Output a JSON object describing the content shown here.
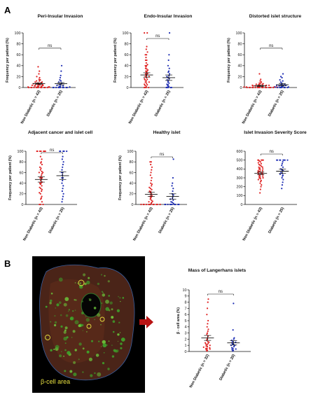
{
  "panel_letters": [
    "A",
    "B"
  ],
  "micrograph_label": "β-cell area",
  "colors": {
    "non_diabetic": "#e02424",
    "diabetic": "#1f2fb4",
    "arrow": "#b81414",
    "tissue_bg": "#000000"
  },
  "chart_data": [
    {
      "type": "scatter",
      "title": "Peri-Insular Invasion",
      "ylabel": "Frequency per patient (%)",
      "ylim": [
        0,
        100
      ],
      "yticks": [
        0,
        20,
        40,
        60,
        80,
        100
      ],
      "categories": [
        "Non Diabetic (n = 43)",
        "Diabetic (n = 25)"
      ],
      "annotation": "ns",
      "series": [
        {
          "values": [
            0,
            0,
            0,
            0,
            0,
            0,
            0,
            0,
            0,
            0,
            0,
            0,
            1,
            1,
            1,
            2,
            2,
            2,
            3,
            3,
            3,
            4,
            4,
            5,
            5,
            5,
            6,
            6,
            7,
            8,
            8,
            9,
            10,
            10,
            12,
            12,
            14,
            15,
            18,
            20,
            25,
            30,
            38
          ],
          "mean": 7,
          "sem": 1.5
        },
        {
          "values": [
            0,
            0,
            0,
            0,
            0,
            0,
            0,
            0,
            0,
            0,
            1,
            2,
            2,
            3,
            4,
            5,
            6,
            8,
            10,
            12,
            14,
            18,
            22,
            30,
            40
          ],
          "mean": 7,
          "sem": 2
        }
      ]
    },
    {
      "type": "scatter",
      "title": "Endo-Insular Invasion",
      "ylabel": "Frequency per patient (%)",
      "ylim": [
        0,
        100
      ],
      "yticks": [
        0,
        20,
        40,
        60,
        80,
        100
      ],
      "categories": [
        "Non Diabetic (n = 43)",
        "Diabetic (n = 25)"
      ],
      "annotation": "ns",
      "series": [
        {
          "values": [
            0,
            0,
            0,
            0,
            2,
            4,
            5,
            6,
            8,
            10,
            10,
            12,
            14,
            15,
            16,
            18,
            20,
            20,
            22,
            24,
            25,
            26,
            28,
            30,
            30,
            32,
            34,
            35,
            38,
            40,
            40,
            42,
            45,
            50,
            50,
            55,
            60,
            60,
            65,
            70,
            75,
            100,
            100
          ],
          "mean": 23,
          "sem": 4
        },
        {
          "values": [
            0,
            0,
            0,
            0,
            0,
            2,
            3,
            5,
            6,
            8,
            10,
            12,
            14,
            16,
            18,
            20,
            22,
            25,
            28,
            30,
            35,
            40,
            50,
            60,
            100
          ],
          "mean": 18,
          "sem": 5
        }
      ]
    },
    {
      "type": "scatter",
      "title": "Distorted islet structure",
      "ylabel": "Frequency per patient (%)",
      "ylim": [
        0,
        100
      ],
      "yticks": [
        0,
        20,
        40,
        60,
        80,
        100
      ],
      "categories": [
        "Non Diabetic (n = 43)",
        "Diabetic (n = 25)"
      ],
      "annotation": "ns",
      "series": [
        {
          "values": [
            0,
            0,
            0,
            0,
            0,
            0,
            0,
            0,
            0,
            0,
            0,
            0,
            0,
            0,
            0,
            0,
            0,
            1,
            1,
            1,
            1,
            2,
            2,
            2,
            2,
            3,
            3,
            3,
            3,
            4,
            4,
            4,
            5,
            5,
            6,
            6,
            7,
            8,
            8,
            10,
            12,
            15,
            25
          ],
          "mean": 3,
          "sem": 1
        },
        {
          "values": [
            0,
            0,
            0,
            0,
            0,
            0,
            0,
            1,
            1,
            2,
            2,
            3,
            3,
            4,
            4,
            5,
            5,
            6,
            8,
            10,
            12,
            14,
            18,
            20,
            25
          ],
          "mean": 5,
          "sem": 2
        }
      ]
    },
    {
      "type": "scatter",
      "title": "Adjacent cancer and islet cell",
      "ylabel": "Frequency per patient (%)",
      "ylim": [
        0,
        100
      ],
      "yticks": [
        0,
        20,
        40,
        60,
        80,
        100
      ],
      "categories": [
        "Non Diabetic (n = 43)",
        "Diabetic (n = 25)"
      ],
      "annotation": "ns",
      "series": [
        {
          "values": [
            0,
            0,
            0,
            5,
            10,
            12,
            15,
            20,
            22,
            25,
            28,
            30,
            32,
            35,
            38,
            40,
            40,
            42,
            45,
            48,
            50,
            50,
            52,
            55,
            58,
            60,
            60,
            62,
            65,
            68,
            70,
            75,
            78,
            80,
            85,
            90,
            100,
            100,
            100,
            100,
            100,
            100,
            100
          ],
          "mean": 47,
          "sem": 5
        },
        {
          "values": [
            5,
            10,
            15,
            20,
            25,
            30,
            35,
            40,
            45,
            50,
            50,
            55,
            60,
            60,
            65,
            70,
            75,
            80,
            85,
            90,
            100,
            100,
            100,
            100,
            100
          ],
          "mean": 54,
          "sem": 7
        }
      ]
    },
    {
      "type": "scatter",
      "title": "Healthy islet",
      "ylabel": "Frequency per patient (%)",
      "ylim": [
        0,
        100
      ],
      "yticks": [
        0,
        20,
        40,
        60,
        80,
        100
      ],
      "categories": [
        "Non Diabetic (n = 43)",
        "Diabetic (n = 25)"
      ],
      "annotation": "ns",
      "series": [
        {
          "values": [
            0,
            0,
            0,
            0,
            0,
            0,
            0,
            0,
            0,
            0,
            0,
            0,
            2,
            4,
            5,
            6,
            8,
            10,
            12,
            14,
            15,
            16,
            18,
            20,
            22,
            24,
            25,
            28,
            30,
            32,
            35,
            38,
            40,
            45,
            50,
            55,
            60,
            65,
            70,
            75,
            80,
            80,
            0
          ],
          "mean": 19,
          "sem": 4
        },
        {
          "values": [
            0,
            0,
            0,
            0,
            0,
            0,
            0,
            0,
            0,
            0,
            2,
            4,
            5,
            8,
            10,
            12,
            15,
            18,
            20,
            25,
            30,
            35,
            40,
            50,
            85
          ],
          "mean": 15,
          "sem": 5
        }
      ]
    },
    {
      "type": "scatter",
      "title": "Islet Invasion Severity Score",
      "ylabel": "",
      "ylim": [
        0,
        600
      ],
      "yticks": [
        0,
        100,
        200,
        300,
        400,
        500,
        600
      ],
      "categories": [
        "Non Diabetic (n = 43)",
        "Diabetic (n = 25)"
      ],
      "annotation": "ns",
      "series": [
        {
          "values": [
            130,
            170,
            200,
            220,
            240,
            260,
            270,
            280,
            290,
            300,
            300,
            310,
            320,
            320,
            330,
            340,
            340,
            350,
            350,
            360,
            360,
            370,
            370,
            380,
            380,
            390,
            400,
            400,
            410,
            420,
            420,
            430,
            440,
            450,
            460,
            470,
            480,
            490,
            500,
            500,
            500,
            500,
            500
          ],
          "mean": 350,
          "sem": 15
        },
        {
          "values": [
            180,
            220,
            250,
            280,
            300,
            320,
            330,
            340,
            350,
            360,
            380,
            390,
            400,
            420,
            440,
            460,
            480,
            500,
            500,
            500,
            500,
            500,
            500,
            500,
            500
          ],
          "mean": 375,
          "sem": 25
        }
      ]
    },
    {
      "type": "scatter",
      "title": "Mass of Langerhans islets",
      "ylabel": "β - cell area (%)",
      "ylim": [
        0,
        10
      ],
      "yticks": [
        0,
        1,
        2,
        3,
        4,
        5,
        6,
        7,
        8,
        9,
        10
      ],
      "categories": [
        "Non Diabetic (n = 32)",
        "Diabetic (n = 20)"
      ],
      "annotation": "ns",
      "series": [
        {
          "values": [
            0.1,
            0.2,
            0.3,
            0.4,
            0.5,
            0.5,
            0.6,
            0.7,
            0.8,
            0.9,
            1.0,
            1.1,
            1.2,
            1.3,
            1.4,
            1.5,
            1.6,
            1.8,
            2.0,
            2.2,
            2.5,
            2.8,
            3.0,
            3.3,
            3.6,
            4.0,
            4.5,
            5.0,
            6.0,
            7.0,
            8.0,
            8.5
          ],
          "mean": 2.2,
          "sem": 0.4
        },
        {
          "values": [
            0.1,
            0.2,
            0.3,
            0.4,
            0.5,
            0.6,
            0.8,
            1.0,
            1.0,
            1.1,
            1.2,
            1.3,
            1.4,
            1.5,
            1.6,
            1.8,
            2.0,
            2.2,
            3.5,
            7.8
          ],
          "mean": 1.4,
          "sem": 0.35
        }
      ]
    }
  ]
}
